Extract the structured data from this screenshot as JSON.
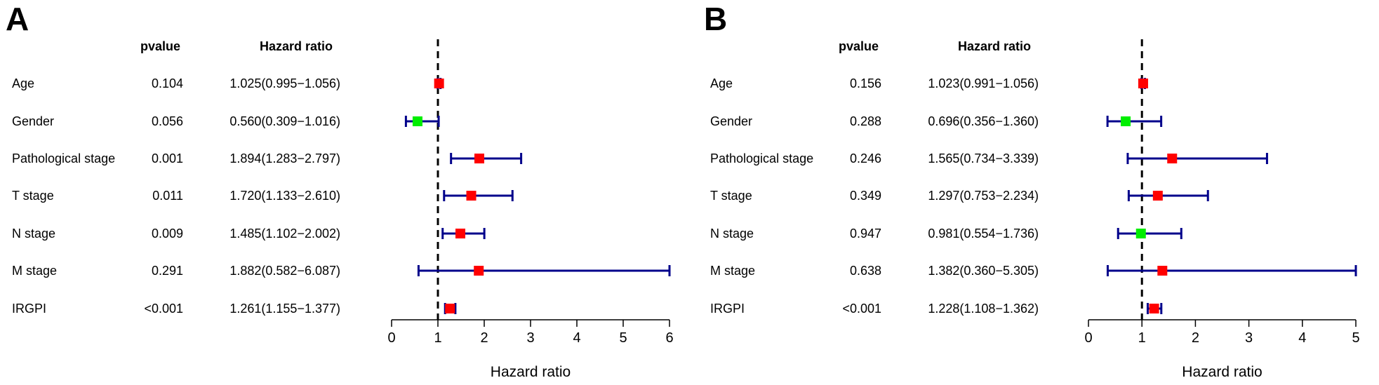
{
  "chart_data": [
    {
      "type": "forest",
      "panel_label": "A",
      "header_pvalue": "pvalue",
      "header_hr": "Hazard ratio",
      "xlabel": "Hazard ratio",
      "xlim": [
        0,
        6
      ],
      "xticks": [
        "0",
        "1",
        "2",
        "3",
        "4",
        "5",
        "6"
      ],
      "reference_line": 1,
      "colors": {
        "increased": "#ff0000",
        "decreased": "#00ee00",
        "ci": "#00008b"
      },
      "rows": [
        {
          "variable": "Age",
          "pvalue": "0.104",
          "hr_text": "1.025(0.995−1.056)",
          "hr": 1.025,
          "lo": 0.995,
          "hi": 1.056
        },
        {
          "variable": "Gender",
          "pvalue": "0.056",
          "hr_text": "0.560(0.309−1.016)",
          "hr": 0.56,
          "lo": 0.309,
          "hi": 1.016
        },
        {
          "variable": "Pathological stage",
          "pvalue": "0.001",
          "hr_text": "1.894(1.283−2.797)",
          "hr": 1.894,
          "lo": 1.283,
          "hi": 2.797
        },
        {
          "variable": "T stage",
          "pvalue": "0.011",
          "hr_text": "1.720(1.133−2.610)",
          "hr": 1.72,
          "lo": 1.133,
          "hi": 2.61
        },
        {
          "variable": "N stage",
          "pvalue": "0.009",
          "hr_text": "1.485(1.102−2.002)",
          "hr": 1.485,
          "lo": 1.102,
          "hi": 2.002
        },
        {
          "variable": "M stage",
          "pvalue": "0.291",
          "hr_text": "1.882(0.582−6.087)",
          "hr": 1.882,
          "lo": 0.582,
          "hi": 6.087
        },
        {
          "variable": "IRGPI",
          "pvalue": "<0.001",
          "hr_text": "1.261(1.155−1.377)",
          "hr": 1.261,
          "lo": 1.155,
          "hi": 1.377
        }
      ]
    },
    {
      "type": "forest",
      "panel_label": "B",
      "header_pvalue": "pvalue",
      "header_hr": "Hazard ratio",
      "xlabel": "Hazard ratio",
      "xlim": [
        0,
        5
      ],
      "xticks": [
        "0",
        "1",
        "2",
        "3",
        "4",
        "5"
      ],
      "reference_line": 1,
      "colors": {
        "increased": "#ff0000",
        "decreased": "#00ee00",
        "ci": "#00008b"
      },
      "rows": [
        {
          "variable": "Age",
          "pvalue": "0.156",
          "hr_text": "1.023(0.991−1.056)",
          "hr": 1.023,
          "lo": 0.991,
          "hi": 1.056
        },
        {
          "variable": "Gender",
          "pvalue": "0.288",
          "hr_text": "0.696(0.356−1.360)",
          "hr": 0.696,
          "lo": 0.356,
          "hi": 1.36
        },
        {
          "variable": "Pathological stage",
          "pvalue": "0.246",
          "hr_text": "1.565(0.734−3.339)",
          "hr": 1.565,
          "lo": 0.734,
          "hi": 3.339
        },
        {
          "variable": "T stage",
          "pvalue": "0.349",
          "hr_text": "1.297(0.753−2.234)",
          "hr": 1.297,
          "lo": 0.753,
          "hi": 2.234
        },
        {
          "variable": "N stage",
          "pvalue": "0.947",
          "hr_text": "0.981(0.554−1.736)",
          "hr": 0.981,
          "lo": 0.554,
          "hi": 1.736
        },
        {
          "variable": "M stage",
          "pvalue": "0.638",
          "hr_text": "1.382(0.360−5.305)",
          "hr": 1.382,
          "lo": 0.36,
          "hi": 5.305
        },
        {
          "variable": "IRGPI",
          "pvalue": "<0.001",
          "hr_text": "1.228(1.108−1.362)",
          "hr": 1.228,
          "lo": 1.108,
          "hi": 1.362
        }
      ]
    }
  ]
}
